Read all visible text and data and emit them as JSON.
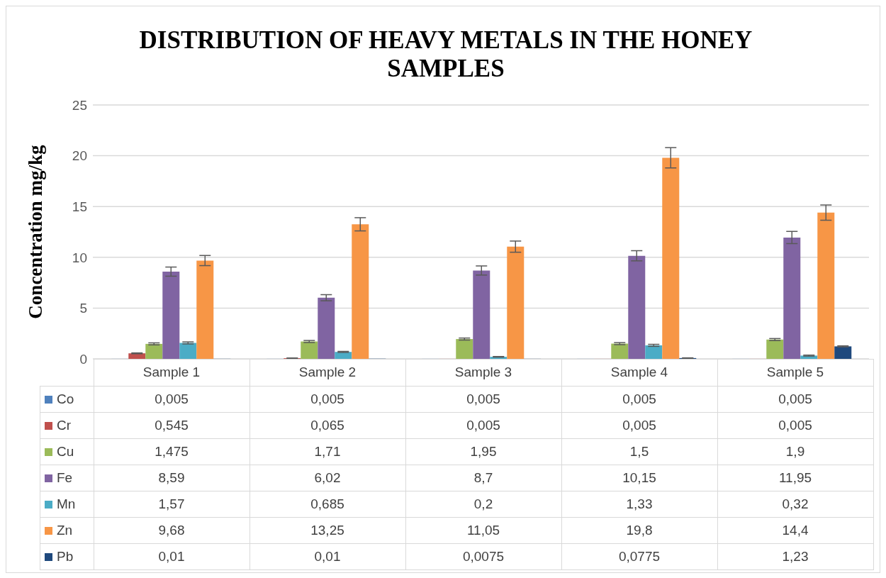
{
  "chart_data": {
    "type": "bar",
    "title": "DISTRIBUTION OF HEAVY METALS IN THE HONEY SAMPLES",
    "ylabel": "Concentration mg/kg",
    "categories": [
      "Sample 1",
      "Sample 2",
      "Sample 3",
      "Sample 4",
      "Sample 5"
    ],
    "ylim": [
      0,
      25
    ],
    "yticks": [
      0,
      5,
      10,
      15,
      20,
      25
    ],
    "grid": "y",
    "legend": "bottom",
    "data_labels": true,
    "series": [
      {
        "name": "Co",
        "color": "#4f81bd",
        "values": [
          0.005,
          0.005,
          0.005,
          0.005,
          0.005
        ],
        "value_labels": [
          "0,005",
          "0,005",
          "0,005",
          "0,005",
          "0,005"
        ]
      },
      {
        "name": "Cr",
        "color": "#c0504d",
        "values": [
          0.545,
          0.065,
          0.005,
          0.005,
          0.005
        ],
        "value_labels": [
          "0,545",
          "0,065",
          "0,005",
          "0,005",
          "0,005"
        ],
        "errors": [
          0.04,
          0.02,
          null,
          null,
          null
        ]
      },
      {
        "name": "Cu",
        "color": "#9bbb59",
        "values": [
          1.475,
          1.71,
          1.95,
          1.5,
          1.9
        ],
        "value_labels": [
          "1,475",
          "1,71",
          "1,95",
          "1,5",
          "1,9"
        ],
        "errors": [
          0.1,
          0.1,
          0.1,
          0.1,
          0.1
        ]
      },
      {
        "name": "Fe",
        "color": "#8064a2",
        "values": [
          8.59,
          6.02,
          8.7,
          10.15,
          11.95
        ],
        "value_labels": [
          "8,59",
          "6,02",
          "8,7",
          "10,15",
          "11,95"
        ],
        "errors": [
          0.45,
          0.3,
          0.45,
          0.5,
          0.6
        ]
      },
      {
        "name": "Mn",
        "color": "#4bacc6",
        "values": [
          1.57,
          0.685,
          0.2,
          1.33,
          0.32
        ],
        "value_labels": [
          "1,57",
          "0,685",
          "0,2",
          "1,33",
          "0,32"
        ],
        "errors": [
          0.1,
          0.05,
          0.03,
          0.1,
          0.05
        ]
      },
      {
        "name": "Zn",
        "color": "#f79646",
        "values": [
          9.68,
          13.25,
          11.05,
          19.8,
          14.4
        ],
        "value_labels": [
          "9,68",
          "13,25",
          "11,05",
          "19,8",
          "14,4"
        ],
        "errors": [
          0.5,
          0.65,
          0.55,
          1,
          0.75
        ]
      },
      {
        "name": "Pb",
        "color": "#1f497d",
        "values": [
          0.01,
          0.01,
          0.0075,
          0.0775,
          1.23
        ],
        "value_labels": [
          "0,01",
          "0,01",
          "0,0075",
          "0,0775",
          "1,23"
        ],
        "errors": [
          null,
          null,
          null,
          0.02,
          0.05
        ]
      }
    ]
  }
}
